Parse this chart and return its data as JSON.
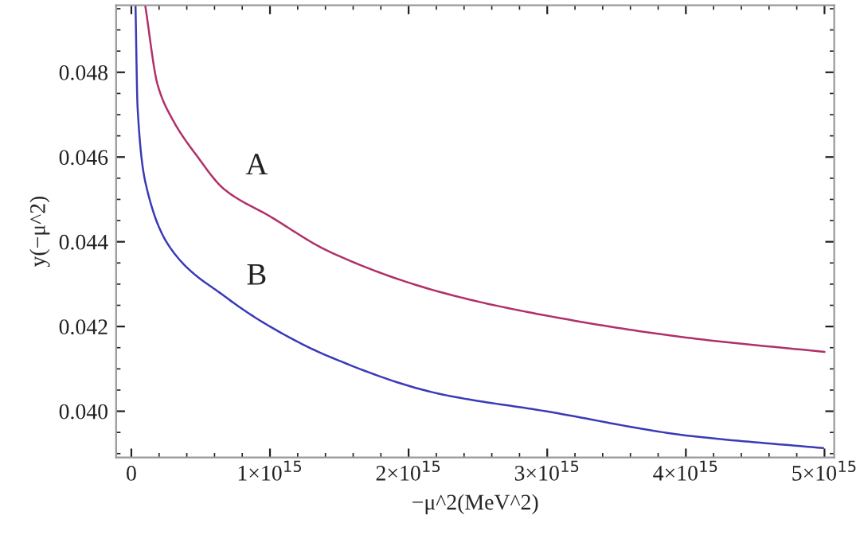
{
  "chart_data": {
    "type": "line",
    "xlabel": "−μ^2(MeV^2)",
    "ylabel": "y(−μ^2)",
    "xlim": [
      -110000000000000.0,
      5070000000000000.0
    ],
    "ylim": [
      0.03891,
      0.04958
    ],
    "xticks": [
      0,
      {
        "value": 1000000000000000.0,
        "label": "1×10$^{15}$"
      },
      {
        "value": 2000000000000000.0,
        "label": "2×10$^{15}$"
      },
      {
        "value": 3000000000000000.0,
        "label": "3×10$^{15}$"
      },
      {
        "value": 4000000000000000.0,
        "label": "4×10$^{15}$"
      },
      {
        "value": 5000000000000000.0,
        "label": "5×10$^{15}$"
      }
    ],
    "yticks": [
      {
        "value": 0.04,
        "label": "0.040"
      },
      {
        "value": 0.042,
        "label": "0.042"
      },
      {
        "value": 0.044,
        "label": "0.044"
      },
      {
        "value": 0.046,
        "label": "0.046"
      },
      {
        "value": 0.048,
        "label": "0.048"
      }
    ],
    "grid": false,
    "legend": false,
    "series": [
      {
        "name": "A",
        "color": "#b0306a",
        "x": [
          100000000000000.0,
          190000000000000.0,
          300000000000000.0,
          470000000000000.0,
          670000000000000.0,
          1000000000000000.0,
          1420000000000000.0,
          2210000000000000.0,
          2990000000000000.0,
          4000000000000000.0,
          5000000000000000.0
        ],
        "values": [
          0.04958,
          0.0477,
          0.04687,
          0.04604,
          0.04524,
          0.0446,
          0.04378,
          0.04283,
          0.04226,
          0.04174,
          0.0414
        ]
      },
      {
        "name": "B",
        "color": "#3a3ab8",
        "x": [
          30000000000000.0,
          45000000000000.0,
          110000000000000.0,
          300000000000000.0,
          670000000000000.0,
          1000000000000000.0,
          1420000000000000.0,
          2210000000000000.0,
          2990000000000000.0,
          4000000000000000.0,
          4990000000000000.0
        ],
        "values": [
          0.04958,
          0.04717,
          0.04528,
          0.04377,
          0.04272,
          0.042,
          0.0413,
          0.04042,
          0.04,
          0.03943,
          0.03913
        ]
      }
    ]
  }
}
